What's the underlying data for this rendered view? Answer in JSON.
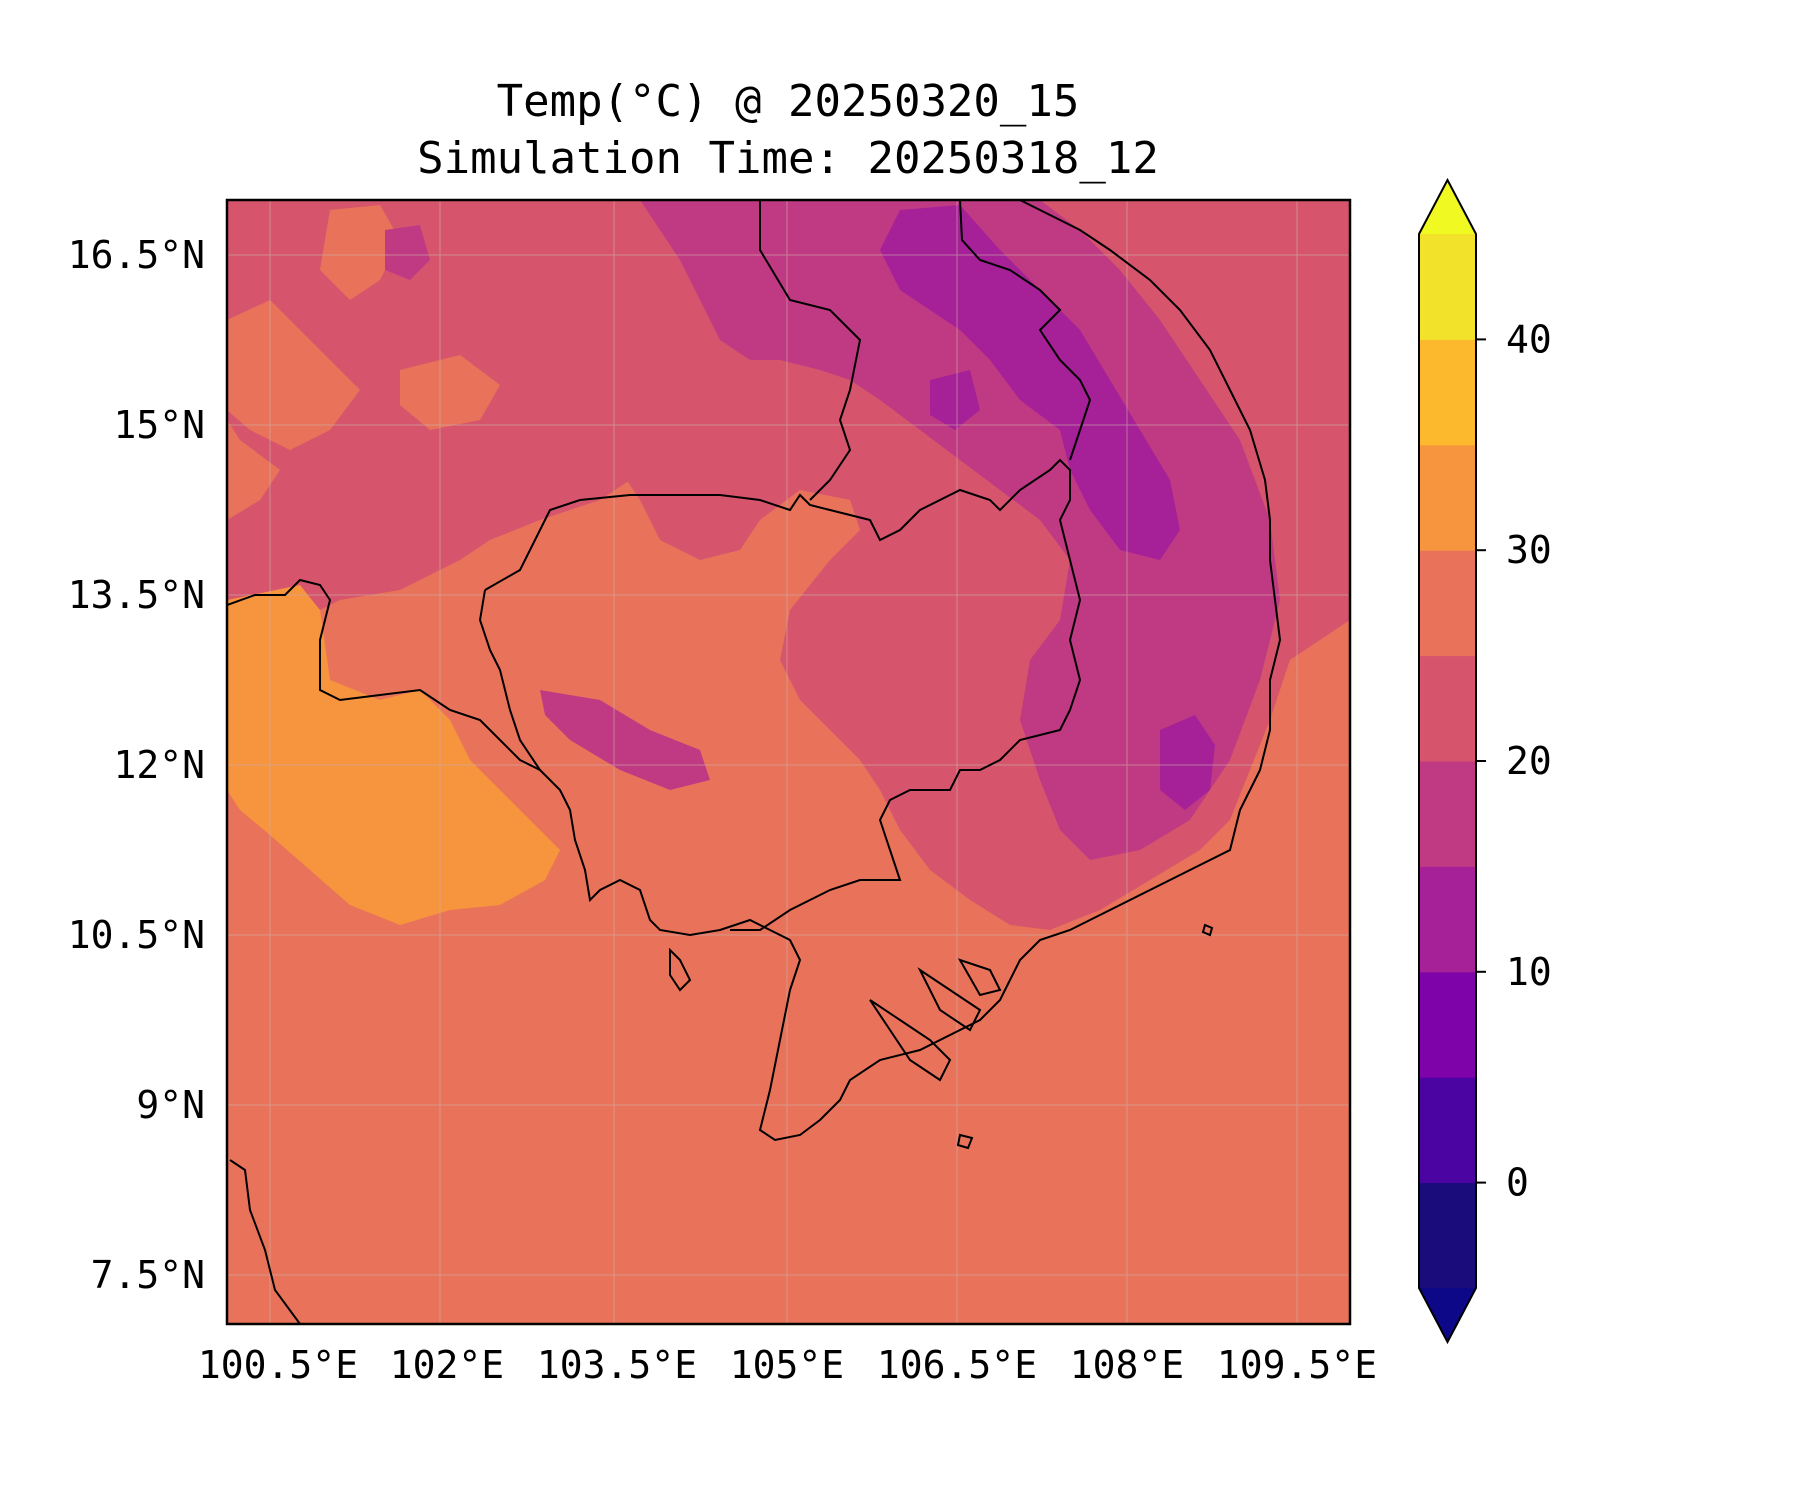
{
  "title": {
    "line1": "Temp(°C) @ 20250320_15",
    "line2": "Simulation Time: 20250318_12"
  },
  "map": {
    "longitude_ticks": [
      "100.5°E",
      "102°E",
      "103.5°E",
      "105°E",
      "106.5°E",
      "108°E",
      "109.5°E"
    ],
    "latitude_ticks": [
      "16.5°N",
      "15°N",
      "13.5°N",
      "12°N",
      "10.5°N",
      "9°N",
      "7.5°N"
    ],
    "lon_range": [
      100.5,
      110.4
    ],
    "lat_range": [
      7.05,
      16.95
    ],
    "grid": true,
    "background_value_c": 27.5
  },
  "colorbar": {
    "colormap": "plasma",
    "levels": [
      -5,
      0,
      5,
      10,
      15,
      20,
      25,
      30,
      35,
      40,
      45
    ],
    "extend": "both",
    "tick_labels": [
      "0",
      "10",
      "20",
      "30",
      "40"
    ],
    "tick_values": [
      0,
      10,
      20,
      30,
      40
    ],
    "band_colors": [
      "#1b0c7c",
      "#4b03a1",
      "#7e03a8",
      "#a62098",
      "#c03a83",
      "#d6556d",
      "#e9735a",
      "#f7943e",
      "#fdb92d",
      "#f2e22a"
    ],
    "under_color": "#0d0887",
    "over_color": "#f0f921"
  }
}
